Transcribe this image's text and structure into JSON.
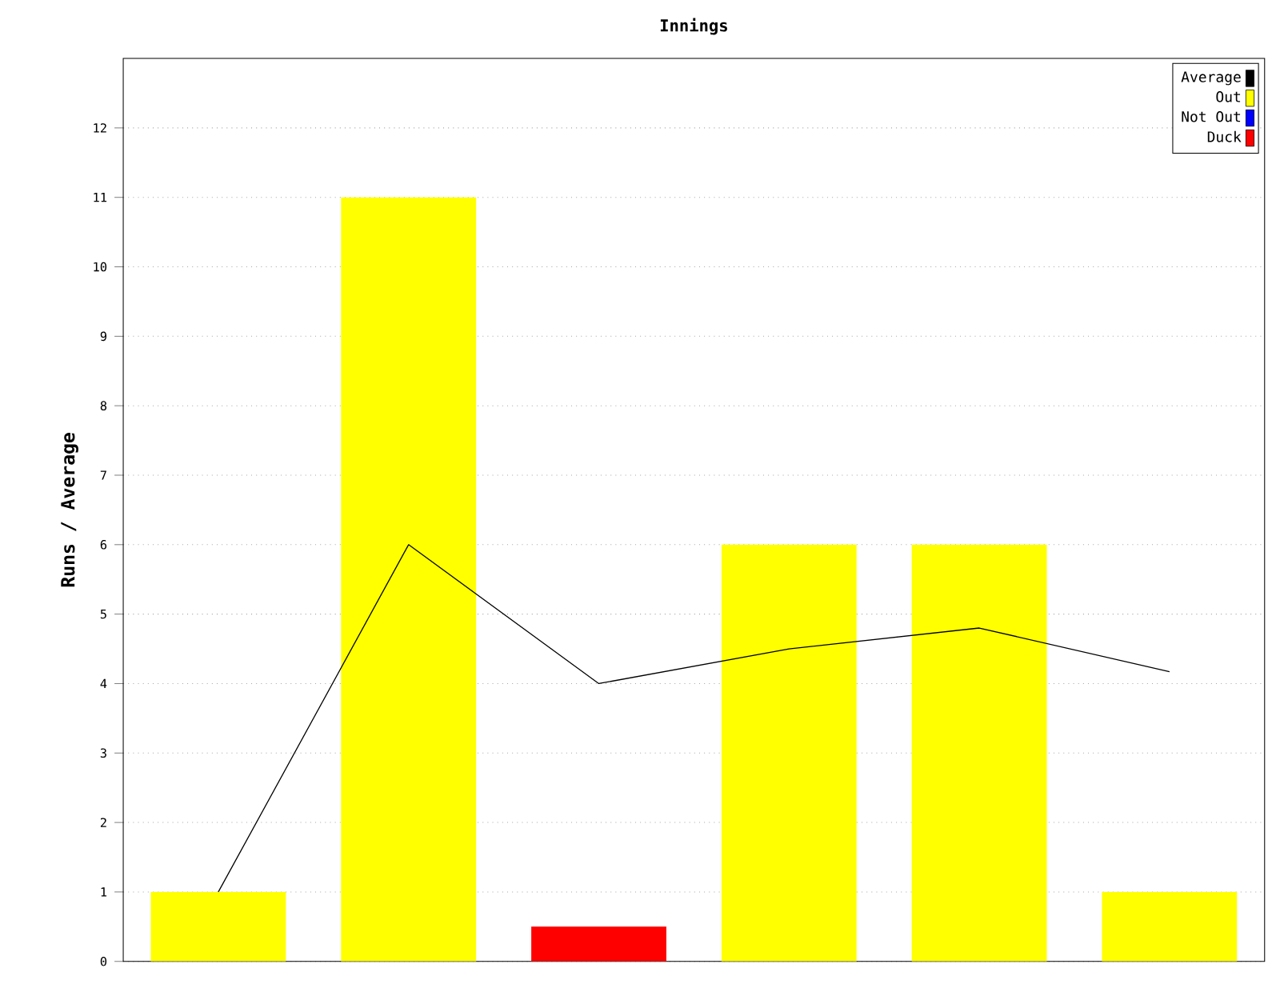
{
  "chart_data": {
    "type": "bar",
    "title": "Innings",
    "ylabel": "Runs / Average",
    "categories": [
      null,
      null,
      null,
      null,
      null,
      null
    ],
    "series": [
      {
        "name": "Average",
        "type": "line",
        "color": "#000000",
        "values": [
          1,
          6,
          4,
          4.5,
          4.8,
          4.17
        ]
      },
      {
        "name": "Out",
        "color": "#ffff00",
        "values": [
          1,
          11,
          null,
          6,
          6,
          1
        ]
      },
      {
        "name": "Not Out",
        "color": "#0000ff",
        "values": [
          null,
          null,
          null,
          null,
          null,
          null
        ]
      },
      {
        "name": "Duck",
        "color": "#ff0000",
        "values": [
          null,
          null,
          0.5,
          null,
          null,
          null
        ]
      }
    ],
    "ylim": [
      0,
      13
    ],
    "yticks": [
      0,
      1,
      2,
      3,
      4,
      5,
      6,
      7,
      8,
      9,
      10,
      11,
      12
    ],
    "grid": "y",
    "legend": "top right",
    "tick_labels": "y",
    "marker": "none",
    "line_style": "solid"
  }
}
